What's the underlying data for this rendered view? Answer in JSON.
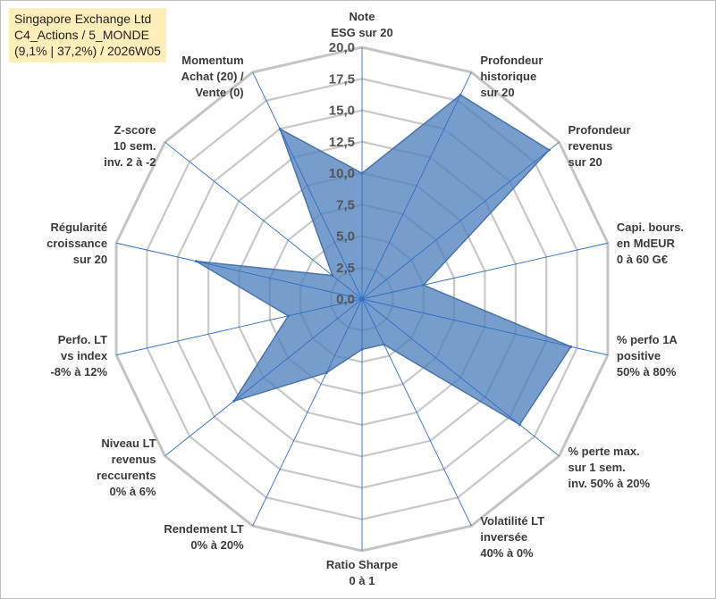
{
  "title": {
    "line1": "Singapore Exchange Ltd",
    "line2": "C4_Actions / 5_MONDE",
    "line3": "(9,1% | 37,2%) / 2026W05"
  },
  "chart_data": {
    "type": "radar",
    "rmin": 0,
    "rmax": 20,
    "tick_values": [
      0,
      2.5,
      5,
      7.5,
      10,
      12.5,
      15,
      17.5,
      20
    ],
    "tick_labels": [
      "0,0",
      "2,5",
      "5,0",
      "7,5",
      "10,0",
      "12,5",
      "15,0",
      "17,5",
      "20,0"
    ],
    "categories": [
      [
        "Note",
        "ESG sur 20"
      ],
      [
        "Profondeur",
        "historique",
        "sur 20"
      ],
      [
        "Profondeur",
        "revenus",
        "sur 20"
      ],
      [
        "Capi. bours.",
        "en MdEUR",
        "0 à 60 G€"
      ],
      [
        "% perfo 1A",
        "positive",
        "50% à 80%"
      ],
      [
        "% perte max.",
        "sur 1 sem.",
        "inv. 50% à 20%"
      ],
      [
        "Volatilité LT",
        "inversée",
        "40% à 0%"
      ],
      [
        "Ratio Sharpe",
        "0 à 1"
      ],
      [
        "Rendement LT",
        "0% à 20%"
      ],
      [
        "Niveau LT",
        "revenus",
        "reccurents",
        "0% à 6%"
      ],
      [
        "Perfo. LT",
        "vs index",
        "-8% à 12%"
      ],
      [
        "Régularité",
        "croissance",
        "sur 20"
      ],
      [
        "Z-score",
        "10 sem.",
        "inv. 2 à -2"
      ],
      [
        "Momentum",
        "Achat (20) /",
        "Vente (0)"
      ]
    ],
    "series": [
      {
        "values": [
          10,
          18,
          19,
          5,
          17,
          16,
          4,
          4,
          6.5,
          13,
          6,
          13.5,
          3,
          15
        ]
      }
    ],
    "colors": {
      "fill": "#4f81bd",
      "stroke": "#4a74aa",
      "spoke": "#2f6fc5",
      "grid": "#c8c8c8"
    },
    "grid": true,
    "legend": "none"
  }
}
